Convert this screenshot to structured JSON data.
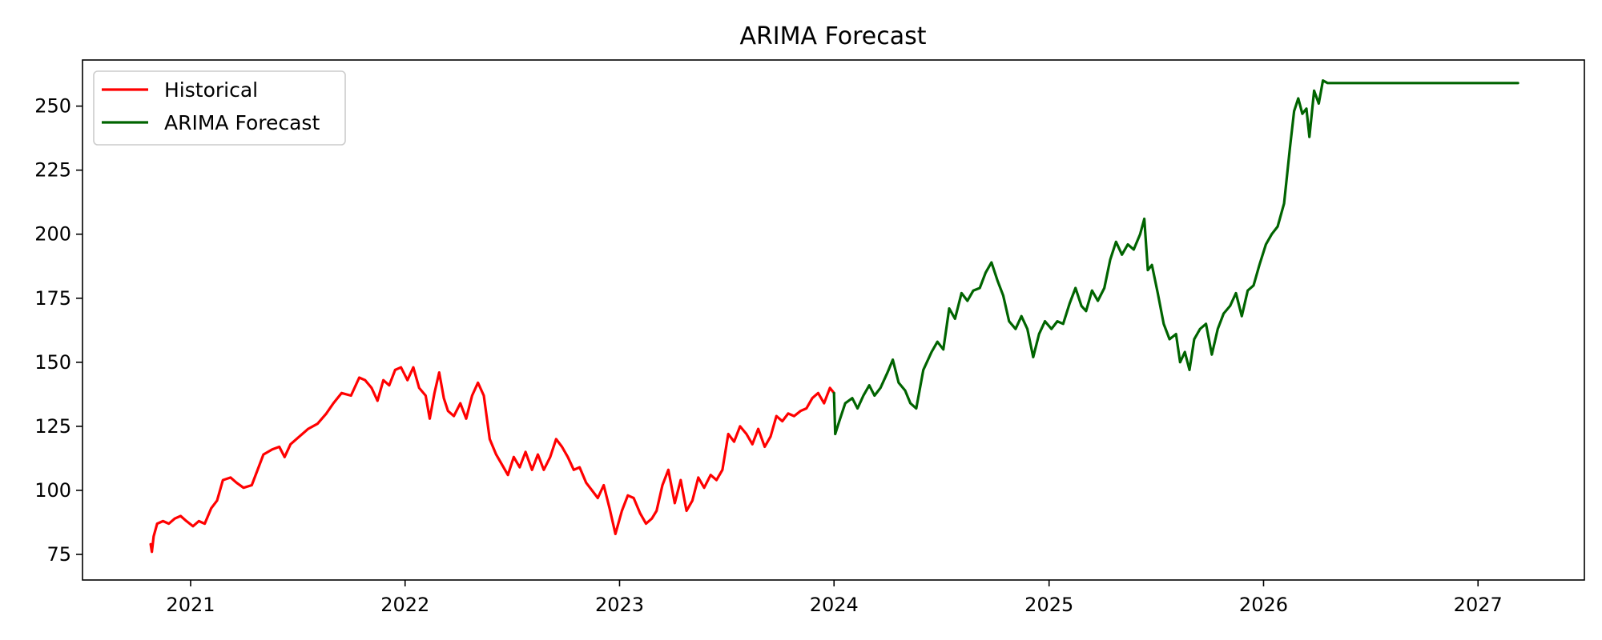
{
  "chart_data": {
    "type": "line",
    "title": "ARIMA Forecast",
    "xlabel": "",
    "ylabel": "",
    "x_axis_type": "date",
    "xlim": [
      "2020-07-01",
      "2027-07-01"
    ],
    "ylim": [
      65,
      268
    ],
    "x_ticks": [
      "2021-01-01",
      "2022-01-01",
      "2023-01-01",
      "2024-01-01",
      "2025-01-01",
      "2026-01-01",
      "2027-01-01"
    ],
    "x_tick_labels": [
      "2021",
      "2022",
      "2023",
      "2024",
      "2025",
      "2026",
      "2027"
    ],
    "y_ticks": [
      75,
      100,
      125,
      150,
      175,
      200,
      225,
      250
    ],
    "y_tick_labels": [
      "75",
      "100",
      "125",
      "150",
      "175",
      "200",
      "225",
      "250"
    ],
    "grid": false,
    "legend_position": "top-left",
    "series": [
      {
        "name": "Historical",
        "color": "#ff0000",
        "points": [
          [
            "2020-10-25",
            79
          ],
          [
            "2020-10-27",
            76
          ],
          [
            "2020-10-30",
            82
          ],
          [
            "2020-11-05",
            87
          ],
          [
            "2020-11-15",
            88
          ],
          [
            "2020-11-25",
            87
          ],
          [
            "2020-12-05",
            89
          ],
          [
            "2020-12-15",
            90
          ],
          [
            "2020-12-25",
            88
          ],
          [
            "2021-01-05",
            86
          ],
          [
            "2021-01-15",
            88
          ],
          [
            "2021-01-25",
            87
          ],
          [
            "2021-02-05",
            93
          ],
          [
            "2021-02-15",
            96
          ],
          [
            "2021-02-25",
            104
          ],
          [
            "2021-03-10",
            105
          ],
          [
            "2021-03-20",
            103
          ],
          [
            "2021-04-01",
            101
          ],
          [
            "2021-04-15",
            102
          ],
          [
            "2021-04-25",
            108
          ],
          [
            "2021-05-05",
            114
          ],
          [
            "2021-05-20",
            116
          ],
          [
            "2021-06-01",
            117
          ],
          [
            "2021-06-10",
            113
          ],
          [
            "2021-06-20",
            118
          ],
          [
            "2021-07-05",
            121
          ],
          [
            "2021-07-20",
            124
          ],
          [
            "2021-08-05",
            126
          ],
          [
            "2021-08-20",
            130
          ],
          [
            "2021-09-01",
            134
          ],
          [
            "2021-09-15",
            138
          ],
          [
            "2021-10-01",
            137
          ],
          [
            "2021-10-15",
            144
          ],
          [
            "2021-10-25",
            143
          ],
          [
            "2021-11-05",
            140
          ],
          [
            "2021-11-15",
            135
          ],
          [
            "2021-11-25",
            143
          ],
          [
            "2021-12-05",
            141
          ],
          [
            "2021-12-15",
            147
          ],
          [
            "2021-12-25",
            148
          ],
          [
            "2022-01-05",
            143
          ],
          [
            "2022-01-15",
            148
          ],
          [
            "2022-01-25",
            140
          ],
          [
            "2022-02-05",
            137
          ],
          [
            "2022-02-12",
            128
          ],
          [
            "2022-02-20",
            138
          ],
          [
            "2022-02-28",
            146
          ],
          [
            "2022-03-08",
            136
          ],
          [
            "2022-03-15",
            131
          ],
          [
            "2022-03-25",
            129
          ],
          [
            "2022-04-05",
            134
          ],
          [
            "2022-04-15",
            128
          ],
          [
            "2022-04-25",
            137
          ],
          [
            "2022-05-05",
            142
          ],
          [
            "2022-05-15",
            137
          ],
          [
            "2022-05-25",
            120
          ],
          [
            "2022-06-05",
            114
          ],
          [
            "2022-06-15",
            110
          ],
          [
            "2022-06-25",
            106
          ],
          [
            "2022-07-05",
            113
          ],
          [
            "2022-07-15",
            109
          ],
          [
            "2022-07-25",
            115
          ],
          [
            "2022-08-05",
            108
          ],
          [
            "2022-08-15",
            114
          ],
          [
            "2022-08-25",
            108
          ],
          [
            "2022-09-05",
            113
          ],
          [
            "2022-09-15",
            120
          ],
          [
            "2022-09-25",
            117
          ],
          [
            "2022-10-05",
            113
          ],
          [
            "2022-10-15",
            108
          ],
          [
            "2022-10-25",
            109
          ],
          [
            "2022-11-05",
            103
          ],
          [
            "2022-11-15",
            100
          ],
          [
            "2022-11-25",
            97
          ],
          [
            "2022-12-05",
            102
          ],
          [
            "2022-12-15",
            93
          ],
          [
            "2022-12-25",
            83
          ],
          [
            "2023-01-05",
            92
          ],
          [
            "2023-01-15",
            98
          ],
          [
            "2023-01-25",
            97
          ],
          [
            "2023-02-05",
            91
          ],
          [
            "2023-02-15",
            87
          ],
          [
            "2023-02-25",
            89
          ],
          [
            "2023-03-05",
            92
          ],
          [
            "2023-03-15",
            102
          ],
          [
            "2023-03-25",
            108
          ],
          [
            "2023-04-05",
            95
          ],
          [
            "2023-04-15",
            104
          ],
          [
            "2023-04-25",
            92
          ],
          [
            "2023-05-05",
            96
          ],
          [
            "2023-05-15",
            105
          ],
          [
            "2023-05-25",
            101
          ],
          [
            "2023-06-05",
            106
          ],
          [
            "2023-06-15",
            104
          ],
          [
            "2023-06-25",
            108
          ],
          [
            "2023-07-05",
            122
          ],
          [
            "2023-07-15",
            119
          ],
          [
            "2023-07-25",
            125
          ],
          [
            "2023-08-05",
            122
          ],
          [
            "2023-08-15",
            118
          ],
          [
            "2023-08-25",
            124
          ],
          [
            "2023-09-05",
            117
          ],
          [
            "2023-09-15",
            121
          ],
          [
            "2023-09-25",
            129
          ],
          [
            "2023-10-05",
            127
          ],
          [
            "2023-10-15",
            130
          ],
          [
            "2023-10-25",
            129
          ],
          [
            "2023-11-05",
            131
          ],
          [
            "2023-11-15",
            132
          ],
          [
            "2023-11-25",
            136
          ],
          [
            "2023-12-05",
            138
          ],
          [
            "2023-12-15",
            134
          ],
          [
            "2023-12-25",
            140
          ],
          [
            "2024-01-01",
            138
          ]
        ]
      },
      {
        "name": "ARIMA Forecast",
        "color": "#006400",
        "points": [
          [
            "2024-01-01",
            138
          ],
          [
            "2024-01-03",
            122
          ],
          [
            "2024-01-10",
            127
          ],
          [
            "2024-01-20",
            134
          ],
          [
            "2024-02-01",
            136
          ],
          [
            "2024-02-10",
            132
          ],
          [
            "2024-02-20",
            137
          ],
          [
            "2024-03-01",
            141
          ],
          [
            "2024-03-10",
            137
          ],
          [
            "2024-03-20",
            140
          ],
          [
            "2024-04-01",
            146
          ],
          [
            "2024-04-10",
            151
          ],
          [
            "2024-04-20",
            142
          ],
          [
            "2024-05-01",
            139
          ],
          [
            "2024-05-10",
            134
          ],
          [
            "2024-05-20",
            132
          ],
          [
            "2024-06-01",
            147
          ],
          [
            "2024-06-15",
            154
          ],
          [
            "2024-06-25",
            158
          ],
          [
            "2024-07-05",
            155
          ],
          [
            "2024-07-15",
            171
          ],
          [
            "2024-07-25",
            167
          ],
          [
            "2024-08-05",
            177
          ],
          [
            "2024-08-15",
            174
          ],
          [
            "2024-08-25",
            178
          ],
          [
            "2024-09-05",
            179
          ],
          [
            "2024-09-15",
            185
          ],
          [
            "2024-09-25",
            189
          ],
          [
            "2024-10-05",
            182
          ],
          [
            "2024-10-15",
            176
          ],
          [
            "2024-10-25",
            166
          ],
          [
            "2024-11-05",
            163
          ],
          [
            "2024-11-15",
            168
          ],
          [
            "2024-11-25",
            163
          ],
          [
            "2024-12-05",
            152
          ],
          [
            "2024-12-15",
            161
          ],
          [
            "2024-12-25",
            166
          ],
          [
            "2025-01-05",
            163
          ],
          [
            "2025-01-15",
            166
          ],
          [
            "2025-01-25",
            165
          ],
          [
            "2025-02-05",
            173
          ],
          [
            "2025-02-15",
            179
          ],
          [
            "2025-02-25",
            172
          ],
          [
            "2025-03-05",
            170
          ],
          [
            "2025-03-15",
            178
          ],
          [
            "2025-03-25",
            174
          ],
          [
            "2025-04-05",
            179
          ],
          [
            "2025-04-15",
            190
          ],
          [
            "2025-04-25",
            197
          ],
          [
            "2025-05-05",
            192
          ],
          [
            "2025-05-15",
            196
          ],
          [
            "2025-05-25",
            194
          ],
          [
            "2025-06-05",
            200
          ],
          [
            "2025-06-12",
            206
          ],
          [
            "2025-06-18",
            186
          ],
          [
            "2025-06-25",
            188
          ],
          [
            "2025-07-05",
            177
          ],
          [
            "2025-07-15",
            165
          ],
          [
            "2025-07-25",
            159
          ],
          [
            "2025-08-05",
            161
          ],
          [
            "2025-08-12",
            150
          ],
          [
            "2025-08-20",
            154
          ],
          [
            "2025-08-28",
            147
          ],
          [
            "2025-09-05",
            159
          ],
          [
            "2025-09-15",
            163
          ],
          [
            "2025-09-25",
            165
          ],
          [
            "2025-10-05",
            153
          ],
          [
            "2025-10-15",
            163
          ],
          [
            "2025-10-25",
            169
          ],
          [
            "2025-11-05",
            172
          ],
          [
            "2025-11-15",
            177
          ],
          [
            "2025-11-25",
            168
          ],
          [
            "2025-12-05",
            178
          ],
          [
            "2025-12-15",
            180
          ],
          [
            "2025-12-25",
            188
          ],
          [
            "2026-01-05",
            196
          ],
          [
            "2026-01-15",
            200
          ],
          [
            "2026-01-25",
            203
          ],
          [
            "2026-02-05",
            212
          ],
          [
            "2026-02-15",
            234
          ],
          [
            "2026-02-22",
            248
          ],
          [
            "2026-03-01",
            253
          ],
          [
            "2026-03-08",
            247
          ],
          [
            "2026-03-15",
            249
          ],
          [
            "2026-03-20",
            238
          ],
          [
            "2026-03-28",
            256
          ],
          [
            "2026-04-05",
            251
          ],
          [
            "2026-04-12",
            260
          ],
          [
            "2026-04-20",
            259
          ],
          [
            "2026-05-01",
            259
          ],
          [
            "2026-08-01",
            259
          ],
          [
            "2026-11-01",
            259
          ],
          [
            "2027-03-10",
            259
          ]
        ]
      }
    ]
  }
}
